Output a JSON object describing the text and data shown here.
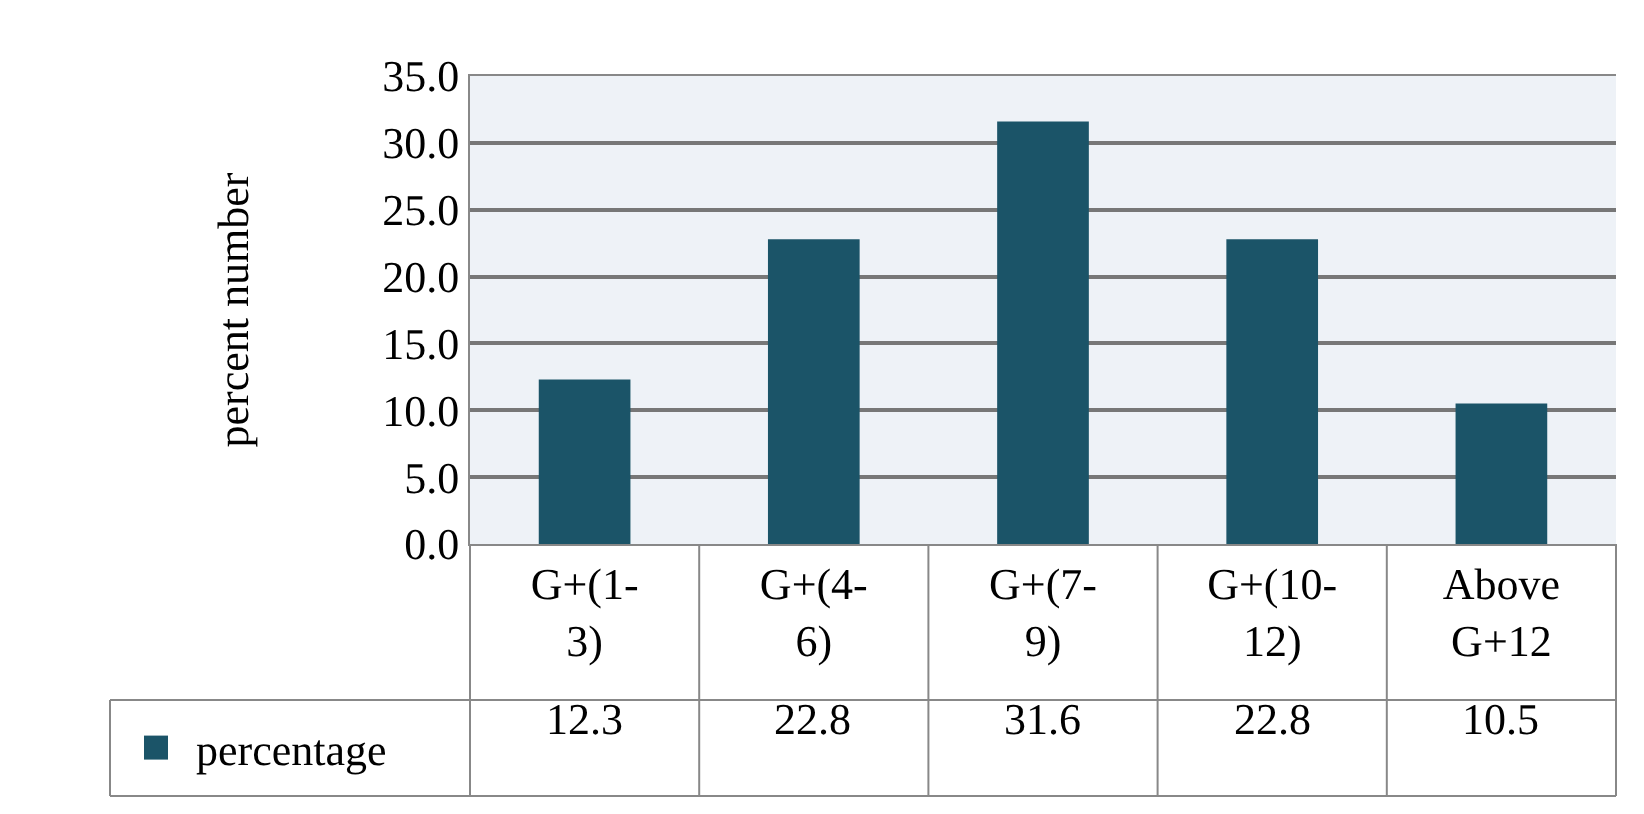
{
  "chart_data": {
    "type": "bar",
    "ylabel": "percent number",
    "categories": [
      "G+(1-3)",
      "G+(4-6)",
      "G+(7-9)",
      "G+(10-12)",
      "Above G+12"
    ],
    "series": [
      {
        "name": "percentage",
        "color": "#1b5468",
        "values": [
          12.3,
          22.8,
          31.6,
          22.8,
          10.5
        ]
      }
    ],
    "ylim": [
      0,
      35
    ],
    "yticks": [
      {
        "value": 0,
        "label": "0.0"
      },
      {
        "value": 5,
        "label": "5.0"
      },
      {
        "value": 10,
        "label": "10.0"
      },
      {
        "value": 15,
        "label": "15.0"
      },
      {
        "value": 20,
        "label": "20.0"
      },
      {
        "value": 25,
        "label": "25.0"
      },
      {
        "value": 30,
        "label": "30.0"
      },
      {
        "value": 35,
        "label": "35.0"
      }
    ],
    "grid": "y",
    "legend": "bottom left",
    "data_labels": true
  }
}
